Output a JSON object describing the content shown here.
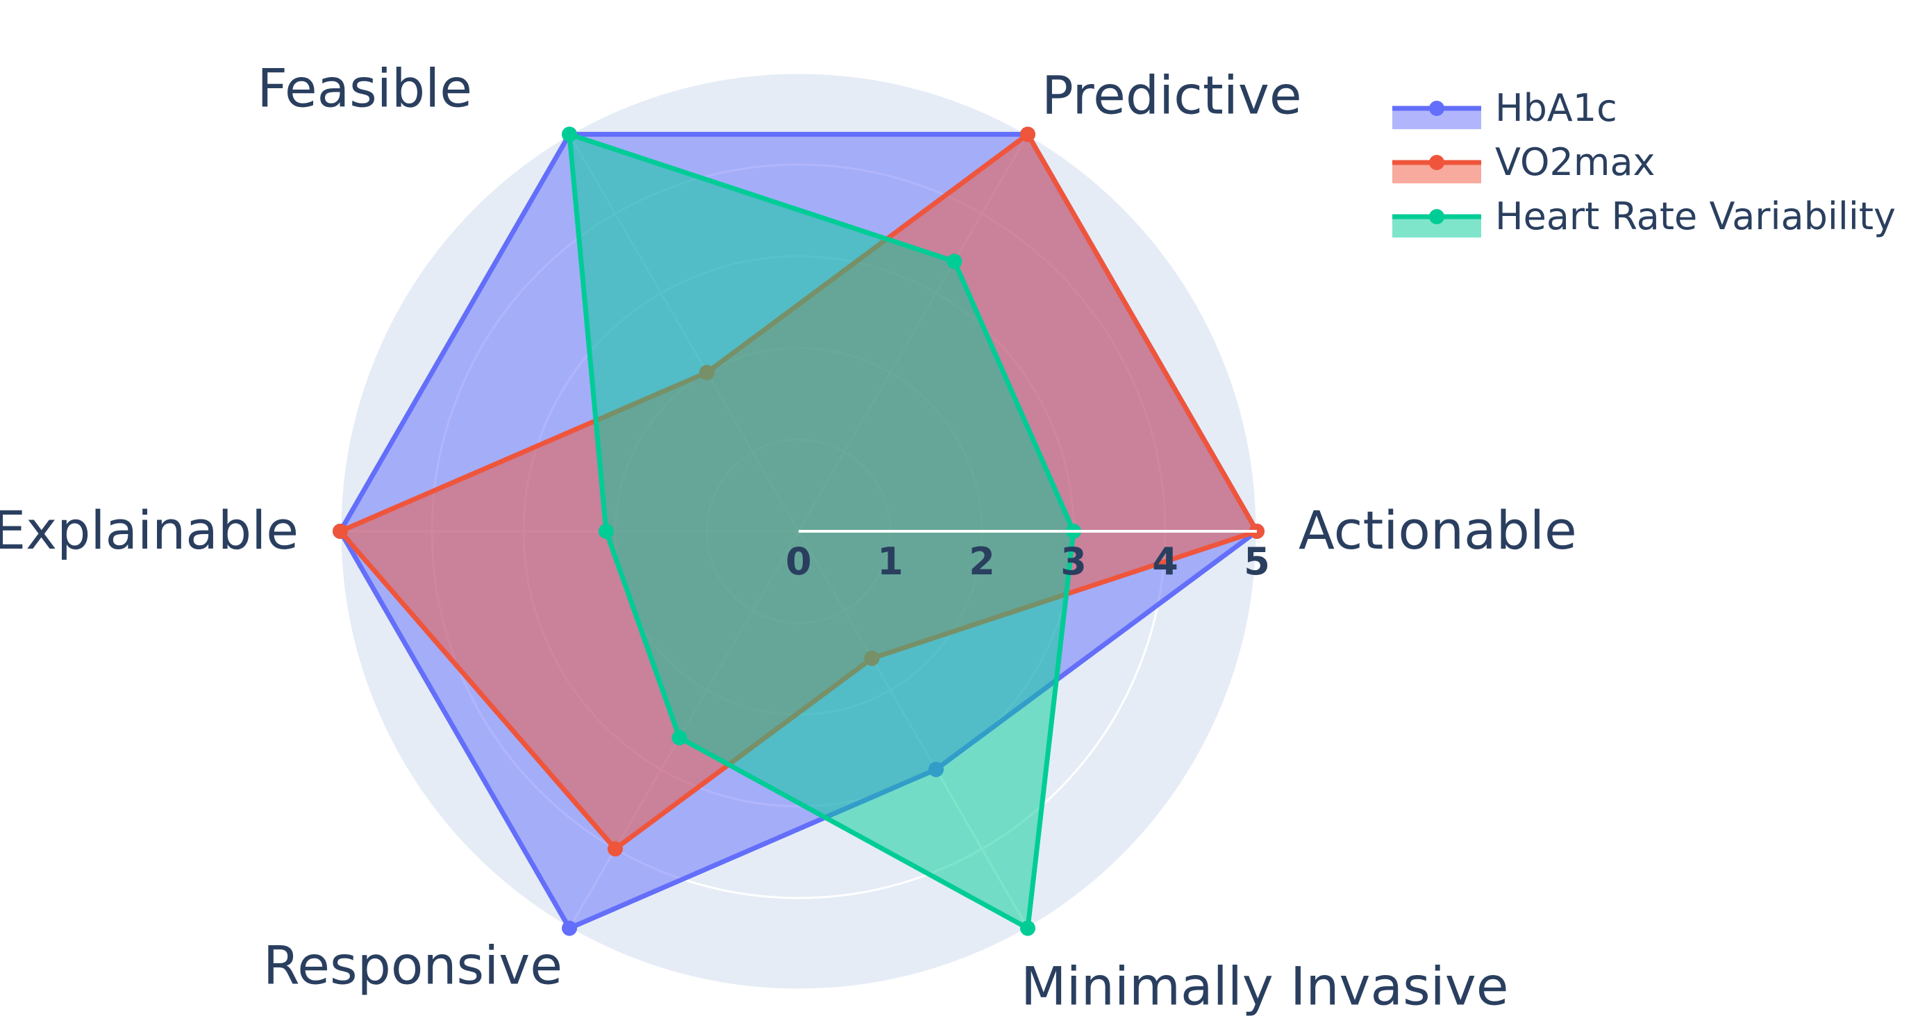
{
  "chart_data": {
    "type": "radar",
    "categories": [
      "Actionable",
      "Predictive",
      "Feasible",
      "Explainable",
      "Responsive",
      "Minimally Invasive"
    ],
    "radial_range": [
      0,
      5
    ],
    "radial_ticks": [
      "0",
      "1",
      "2",
      "3",
      "4",
      "5"
    ],
    "grid": true,
    "legend_position": "top-right",
    "series": [
      {
        "name": "HbA1c",
        "values": [
          5,
          5,
          5,
          5,
          5,
          3
        ],
        "color": "#636efa"
      },
      {
        "name": "VO2max",
        "values": [
          5,
          5,
          2,
          5,
          4,
          1.6
        ],
        "color": "#ef553b"
      },
      {
        "name": "Heart Rate Variability",
        "values": [
          3,
          3.4,
          5,
          2.1,
          2.6,
          5
        ],
        "color": "#00cc96"
      }
    ]
  },
  "colors": {
    "polar_background": "#e5ecf6",
    "grid": "#ffffff",
    "text": "#2a3f5f"
  }
}
